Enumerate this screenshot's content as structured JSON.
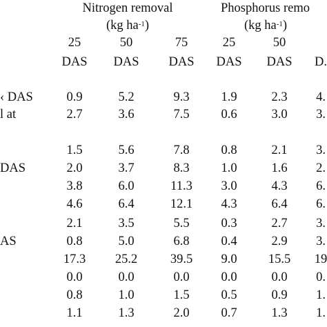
{
  "table": {
    "groups": [
      {
        "line1": "Nitrogen removal",
        "line2_prefix": "(kg ha",
        "line2_sup": "-1",
        "line2_suffix": ")"
      },
      {
        "line1": "Phosphorus remo",
        "line2_prefix": "(kg ha",
        "line2_sup": "-1",
        "line2_suffix": ")"
      }
    ],
    "columns": [
      {
        "day": "25",
        "unit": "DAS"
      },
      {
        "day": "50",
        "unit": "DAS"
      },
      {
        "day": "75",
        "unit": "DAS"
      },
      {
        "day": "25",
        "unit": "DAS"
      },
      {
        "day": "50",
        "unit": "DAS"
      },
      {
        "day": "",
        "unit": "D."
      }
    ],
    "row_labels": [
      {
        "row": 0,
        "text": "‹ DAS"
      },
      {
        "row": 1,
        "text": "l at"
      },
      {
        "row": 4,
        "text": "DAS"
      },
      {
        "row": 8,
        "text": "AS"
      }
    ],
    "rows": [
      [
        "0.9",
        "5.2",
        "9.3",
        "1.9",
        "2.3",
        "4."
      ],
      [
        "2.7",
        "3.6",
        "7.5",
        "0.6",
        "3.0",
        "3."
      ],
      [
        "",
        "",
        "",
        "",
        "",
        ""
      ],
      [
        "1.5",
        "5.6",
        "7.8",
        "0.8",
        "2.1",
        "3."
      ],
      [
        "2.0",
        "3.7",
        "8.3",
        "1.0",
        "1.6",
        "2."
      ],
      [
        "3.8",
        "6.0",
        "11.3",
        "3.0",
        "4.3",
        "6."
      ],
      [
        "4.6",
        "6.4",
        "12.1",
        "4.3",
        "6.4",
        "6."
      ],
      [
        "2.1",
        "3.5",
        "5.5",
        "0.3",
        "2.7",
        "3."
      ],
      [
        "0.8",
        "5.0",
        "6.8",
        "0.4",
        "2.9",
        "3."
      ],
      [
        "17.3",
        "25.2",
        "39.5",
        "9.0",
        "15.5",
        "19"
      ],
      [
        "0.0",
        "0.0",
        "0.0",
        "0.0",
        "0.0",
        "0."
      ],
      [
        "0.8",
        "1.0",
        "1.5",
        "0.5",
        "0.9",
        "1."
      ],
      [
        "1.1",
        "1.3",
        "2.0",
        "0.7",
        "1.3",
        "1."
      ]
    ]
  }
}
